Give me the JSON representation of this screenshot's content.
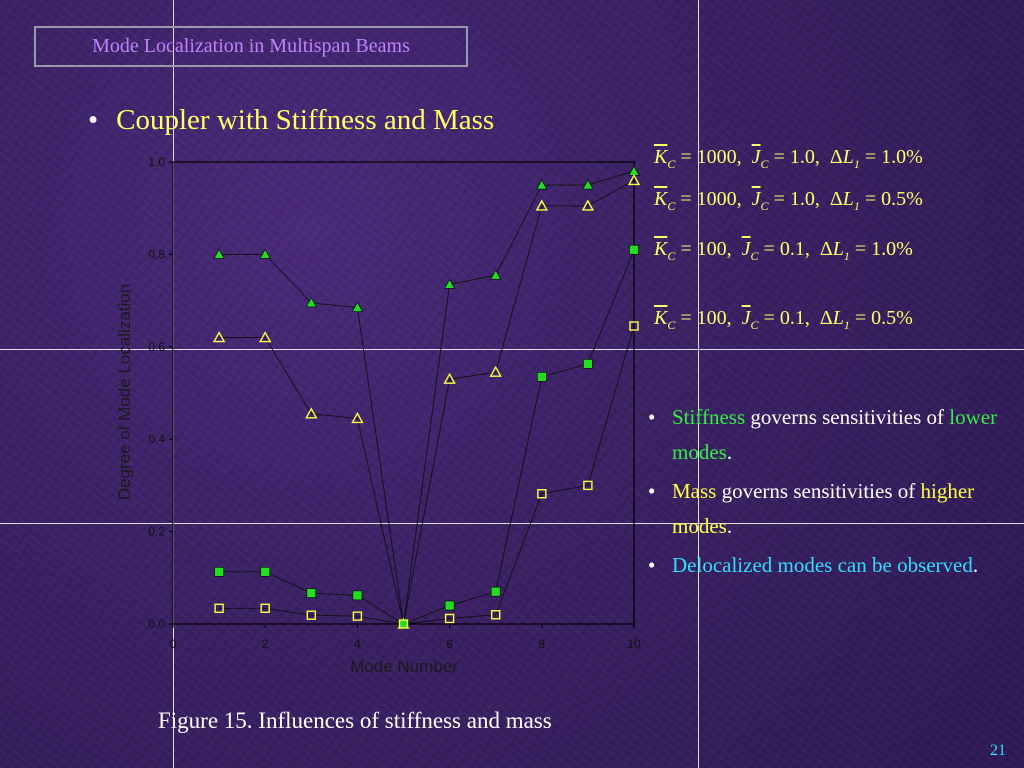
{
  "slide_title": "Mode Localization in Multispan Beams",
  "main_bullet": "Coupler with Stiffness and Mass",
  "legend": [
    {
      "K": "1000,",
      "J": "1.0,",
      "L": "1.0%",
      "marker": "filled-triangle",
      "color": "#22dd22"
    },
    {
      "K": "1000,",
      "J": "1.0,",
      "L": "0.5%",
      "marker": "open-triangle",
      "color": "#ffff44"
    },
    {
      "K": "100,",
      "J": "0.1,",
      "L": "1.0%",
      "marker": "filled-square",
      "color": "#22dd22"
    },
    {
      "K": "100,",
      "J": "0.1,",
      "L": "0.5%",
      "marker": "open-square",
      "color": "#ffff44"
    }
  ],
  "side_bullets": [
    {
      "parts": [
        [
          "Stiffness",
          "green"
        ],
        [
          " governs sensitivities of ",
          "white"
        ],
        [
          "lower modes",
          "green"
        ],
        [
          ".",
          "white"
        ]
      ]
    },
    {
      "parts": [
        [
          "Mass",
          "yellow"
        ],
        [
          " governs sensitivities of ",
          "white"
        ],
        [
          "higher modes",
          "yellow"
        ],
        [
          ".",
          "white"
        ]
      ]
    },
    {
      "parts": [
        [
          "Delocalized modes can be observed",
          "cyan"
        ],
        [
          ".",
          "white"
        ]
      ]
    }
  ],
  "caption": "Figure 15. Influences of stiffness and mass",
  "page_number": "21",
  "chart_data": {
    "type": "scatter",
    "title": "",
    "xlabel": "Mode Number",
    "ylabel": "Degree of Mode Localization",
    "xlim": [
      0,
      10
    ],
    "ylim": [
      0.0,
      1.0
    ],
    "x_ticks": [
      "0",
      "2",
      "4",
      "6",
      "8",
      "10"
    ],
    "y_ticks": [
      "0.0",
      "0.2",
      "0.4",
      "0.6",
      "0.8",
      "1.0"
    ],
    "x": [
      1,
      2,
      3,
      4,
      5,
      6,
      7,
      8,
      9,
      10
    ],
    "series": [
      {
        "marker": "filled-triangle",
        "color": "#22dd22",
        "values": [
          0.8,
          0.8,
          0.695,
          0.685,
          0.0,
          0.735,
          0.755,
          0.95,
          0.95,
          0.98
        ]
      },
      {
        "marker": "open-triangle",
        "color": "#ffff44",
        "values": [
          0.62,
          0.62,
          0.455,
          0.445,
          0.0,
          0.53,
          0.545,
          0.905,
          0.905,
          0.96
        ]
      },
      {
        "marker": "filled-square",
        "color": "#22dd22",
        "values": [
          0.113,
          0.113,
          0.067,
          0.062,
          0.0,
          0.04,
          0.07,
          0.535,
          0.563,
          0.81
        ]
      },
      {
        "marker": "open-square",
        "color": "#ffff44",
        "values": [
          0.034,
          0.034,
          0.019,
          0.017,
          0.0,
          0.012,
          0.02,
          0.282,
          0.3,
          0.645
        ]
      }
    ],
    "grid": false,
    "legend_placement": "right"
  }
}
